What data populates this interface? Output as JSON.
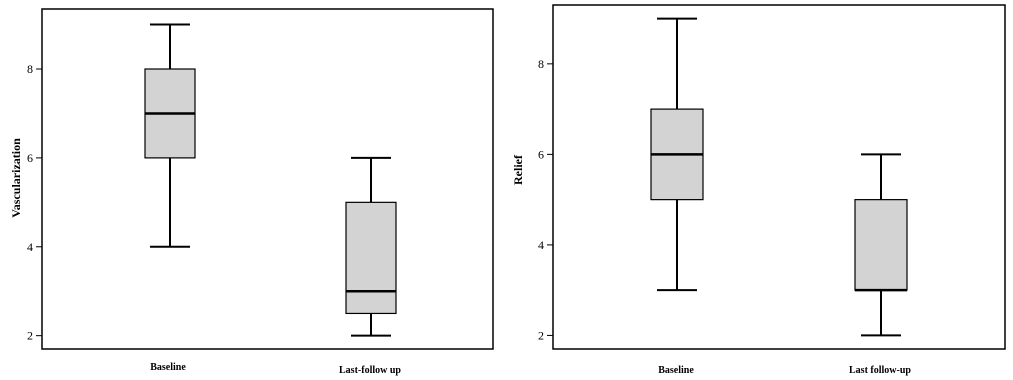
{
  "chart_data": [
    {
      "type": "boxplot",
      "ylabel": "Vascularization",
      "xlabel": "",
      "ylim": [
        1.7,
        9.35
      ],
      "yticks": [
        2,
        4,
        6,
        8
      ],
      "grid": false,
      "categories": [
        "Baseline",
        "Last-follow up"
      ],
      "boxes": [
        {
          "category": "Baseline",
          "min": 4,
          "q1": 6,
          "median": 7,
          "q3": 8,
          "max": 9
        },
        {
          "category": "Last-follow up",
          "min": 2,
          "q1": 2.5,
          "median": 3,
          "q3": 5,
          "max": 6
        }
      ],
      "box_fill": "#d3d3d3",
      "line_color": "#000000"
    },
    {
      "type": "boxplot",
      "ylabel": "Relief",
      "xlabel": "",
      "ylim": [
        1.7,
        9.3
      ],
      "yticks": [
        2,
        4,
        6,
        8
      ],
      "grid": false,
      "categories": [
        "Baseline",
        "Last follow-up"
      ],
      "boxes": [
        {
          "category": "Baseline",
          "min": 3,
          "q1": 5,
          "median": 6,
          "q3": 7,
          "max": 9
        },
        {
          "category": "Last follow-up",
          "min": 2,
          "q1": 3,
          "median": 3,
          "q3": 5,
          "max": 6
        }
      ],
      "box_fill": "#d3d3d3",
      "line_color": "#000000"
    }
  ]
}
